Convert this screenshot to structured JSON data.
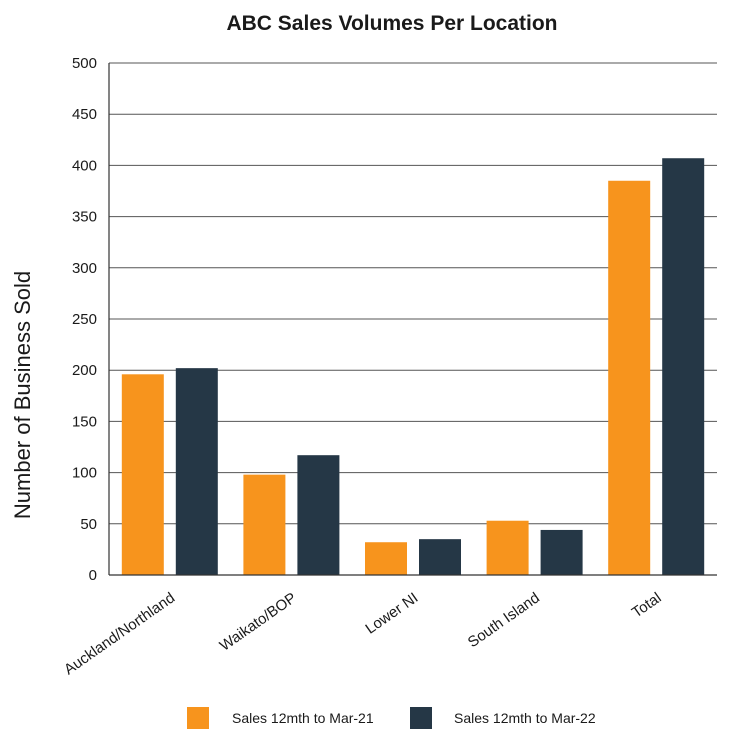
{
  "chart_data": {
    "type": "bar",
    "title": "ABC Sales Volumes Per Location",
    "xlabel": "",
    "ylabel": "Number of Business Sold",
    "categories": [
      "Auckland/Northland",
      "Waikato/BOP",
      "Lower NI",
      "South Island",
      "Total"
    ],
    "series": [
      {
        "name": "Sales 12mth to Mar-21",
        "color": "#F7941D",
        "values": [
          196,
          98,
          32,
          53,
          385
        ]
      },
      {
        "name": "Sales 12mth to Mar-22",
        "color": "#253746",
        "values": [
          202,
          117,
          35,
          44,
          407
        ]
      }
    ],
    "ylim": [
      0,
      500
    ],
    "yticks": [
      0,
      50,
      100,
      150,
      200,
      250,
      300,
      350,
      400,
      450,
      500
    ],
    "grid": true,
    "legend_position": "bottom-center"
  }
}
